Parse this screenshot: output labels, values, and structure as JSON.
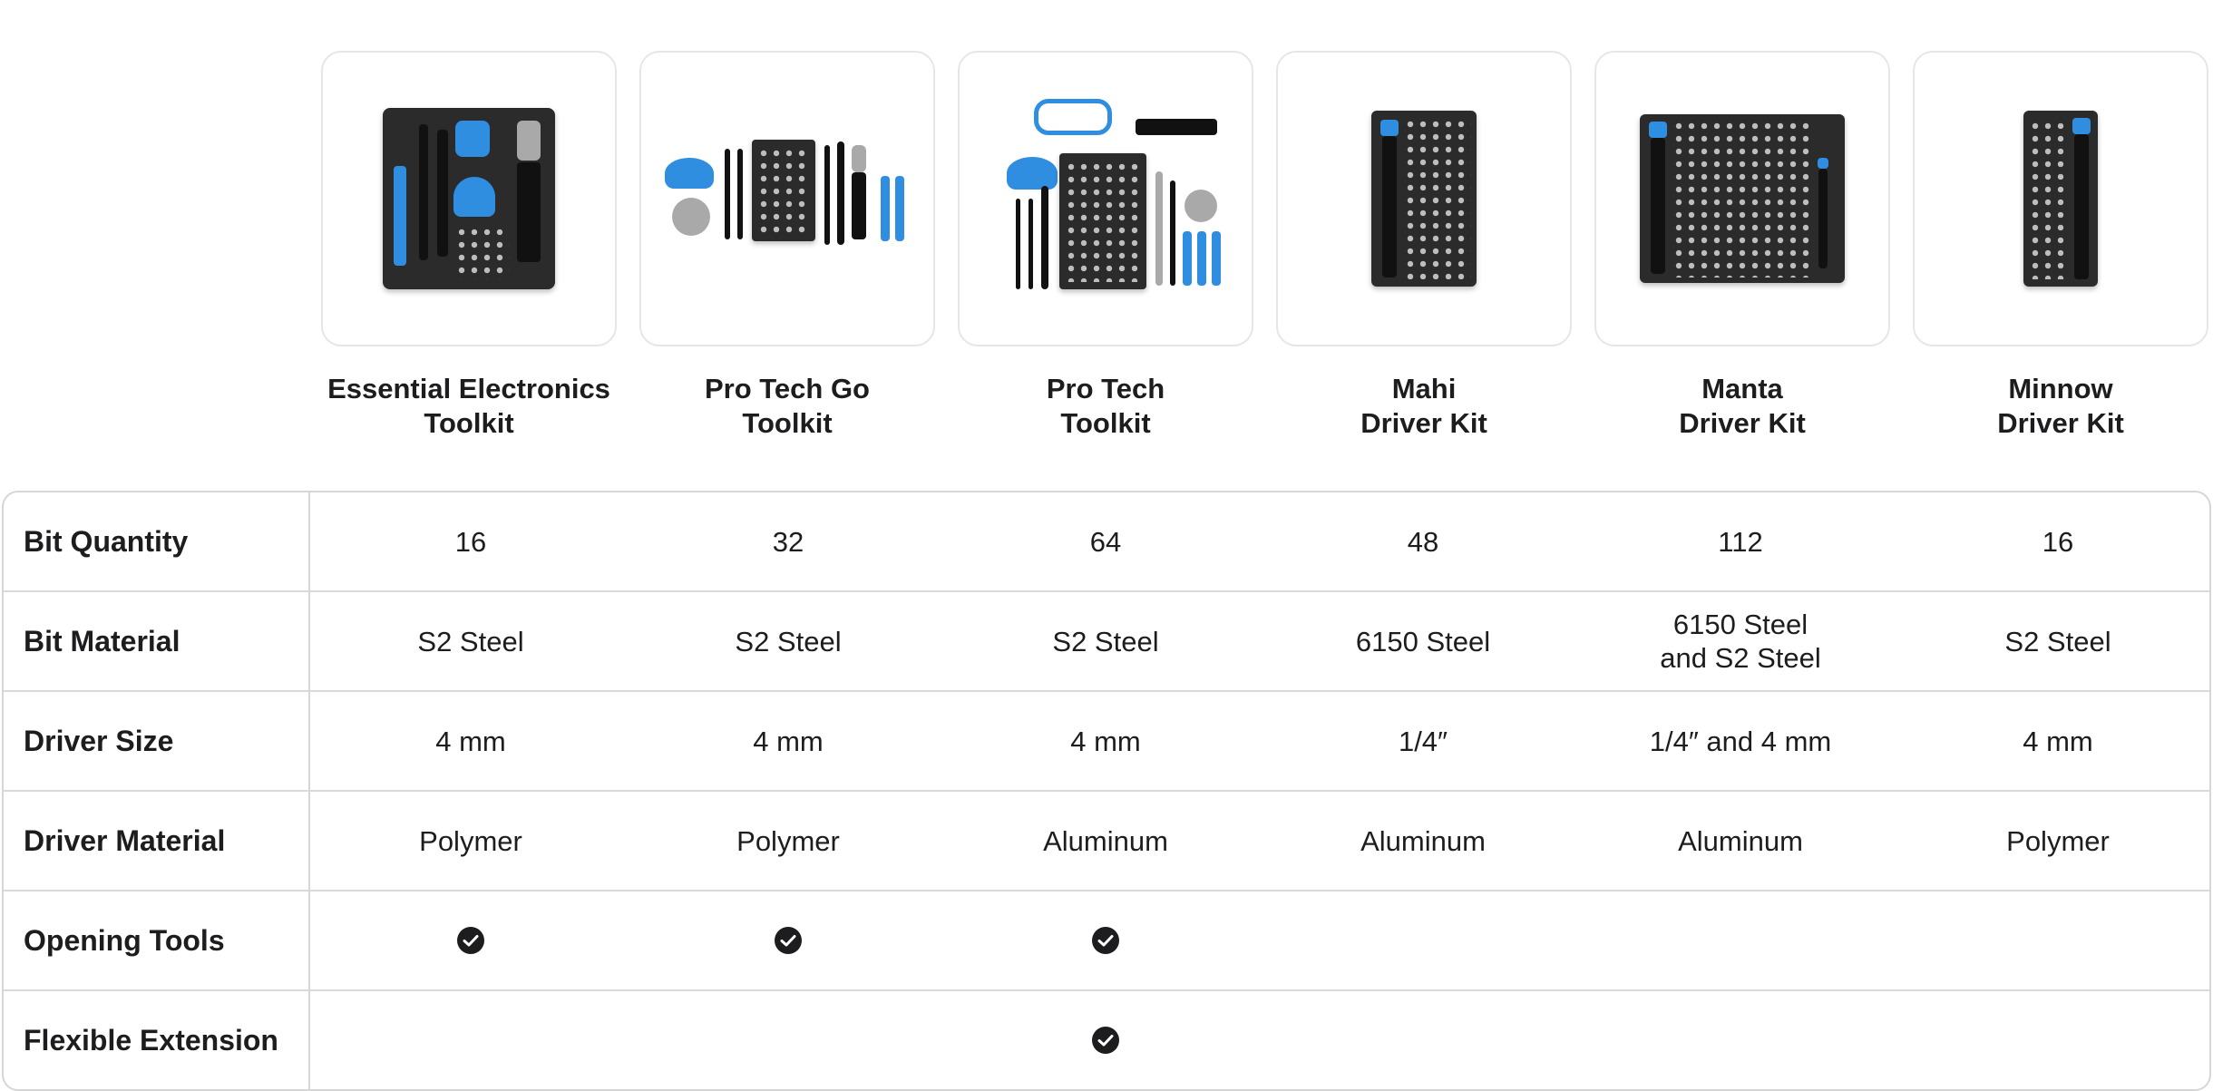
{
  "products": [
    {
      "name": "Essential Electronics\nToolkit"
    },
    {
      "name": "Pro Tech Go\nToolkit"
    },
    {
      "name": "Pro Tech\nToolkit"
    },
    {
      "name": "Mahi\nDriver Kit"
    },
    {
      "name": "Manta\nDriver Kit"
    },
    {
      "name": "Minnow\nDriver Kit"
    }
  ],
  "rows": [
    {
      "label": "Bit Quantity",
      "values": [
        "16",
        "32",
        "64",
        "48",
        "112",
        "16"
      ]
    },
    {
      "label": "Bit Material",
      "values": [
        "S2 Steel",
        "S2 Steel",
        "S2 Steel",
        "6150 Steel",
        "6150 Steel\nand S2 Steel",
        "S2 Steel"
      ]
    },
    {
      "label": "Driver Size",
      "values": [
        "4 mm",
        "4 mm",
        "4 mm",
        "1/4″",
        "1/4″ and 4 mm",
        "4 mm"
      ]
    },
    {
      "label": "Driver Material",
      "values": [
        "Polymer",
        "Polymer",
        "Aluminum",
        "Aluminum",
        "Aluminum",
        "Polymer"
      ]
    },
    {
      "label": "Opening Tools",
      "checks": [
        true,
        true,
        true,
        false,
        false,
        false
      ]
    },
    {
      "label": "Flexible Extension",
      "checks": [
        false,
        false,
        true,
        false,
        false,
        false
      ]
    }
  ],
  "colors": {
    "accent": "#2f8ee0",
    "check": "#1d1d1f",
    "border": "#d6d6d6"
  },
  "icons": {
    "included": "checkmark-circle-icon"
  }
}
